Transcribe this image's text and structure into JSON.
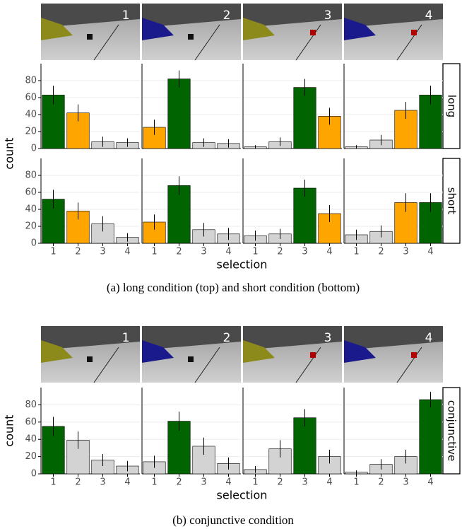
{
  "chart_data": [
    {
      "type": "bar",
      "row_label": "long",
      "y_label": "count",
      "panel_titles": [
        "1",
        "2",
        "3",
        "4"
      ],
      "ylim": [
        0,
        100
      ],
      "yticks": [
        0,
        20,
        40,
        60,
        80
      ],
      "grid": true,
      "panels": [
        {
          "values": [
            63,
            42,
            8,
            7
          ],
          "errors": [
            11,
            10,
            6,
            5
          ],
          "colors": [
            "#006400",
            "#ffa500",
            "#d3d3d3",
            "#d3d3d3"
          ]
        },
        {
          "values": [
            25,
            82,
            7,
            6
          ],
          "errors": [
            9,
            10,
            5,
            5
          ],
          "colors": [
            "#ffa500",
            "#006400",
            "#d3d3d3",
            "#d3d3d3"
          ]
        },
        {
          "values": [
            2,
            8,
            72,
            38
          ],
          "errors": [
            2,
            5,
            10,
            10
          ],
          "colors": [
            "#d3d3d3",
            "#d3d3d3",
            "#006400",
            "#ffa500"
          ]
        },
        {
          "values": [
            2,
            10,
            45,
            63
          ],
          "errors": [
            2,
            6,
            10,
            11
          ],
          "colors": [
            "#d3d3d3",
            "#d3d3d3",
            "#ffa500",
            "#006400"
          ]
        }
      ]
    },
    {
      "type": "bar",
      "row_label": "short",
      "x_label": "selection",
      "categories": [
        "1",
        "2",
        "3",
        "4"
      ],
      "ylim": [
        0,
        100
      ],
      "yticks": [
        0,
        20,
        40,
        60,
        80
      ],
      "grid": true,
      "panels": [
        {
          "values": [
            52,
            38,
            23,
            7
          ],
          "errors": [
            11,
            10,
            9,
            5
          ],
          "colors": [
            "#006400",
            "#ffa500",
            "#d3d3d3",
            "#d3d3d3"
          ]
        },
        {
          "values": [
            25,
            68,
            16,
            11
          ],
          "errors": [
            9,
            11,
            8,
            7
          ],
          "colors": [
            "#ffa500",
            "#006400",
            "#d3d3d3",
            "#d3d3d3"
          ]
        },
        {
          "values": [
            9,
            11,
            65,
            35
          ],
          "errors": [
            6,
            6,
            10,
            10
          ],
          "colors": [
            "#d3d3d3",
            "#d3d3d3",
            "#006400",
            "#ffa500"
          ]
        },
        {
          "values": [
            10,
            14,
            48,
            48
          ],
          "errors": [
            6,
            7,
            11,
            11
          ],
          "colors": [
            "#d3d3d3",
            "#d3d3d3",
            "#ffa500",
            "#006400"
          ]
        }
      ]
    },
    {
      "type": "bar",
      "row_label": "conjunctive",
      "y_label": "count",
      "x_label": "selection",
      "panel_titles": [
        "1",
        "2",
        "3",
        "4"
      ],
      "categories": [
        "1",
        "2",
        "3",
        "4"
      ],
      "ylim": [
        0,
        100
      ],
      "yticks": [
        0,
        20,
        40,
        60,
        80
      ],
      "grid": true,
      "panels": [
        {
          "values": [
            55,
            39,
            16,
            9
          ],
          "errors": [
            11,
            10,
            7,
            6
          ],
          "colors": [
            "#006400",
            "#d3d3d3",
            "#d3d3d3",
            "#d3d3d3"
          ]
        },
        {
          "values": [
            14,
            61,
            32,
            12
          ],
          "errors": [
            7,
            11,
            10,
            7
          ],
          "colors": [
            "#d3d3d3",
            "#006400",
            "#d3d3d3",
            "#d3d3d3"
          ]
        },
        {
          "values": [
            5,
            29,
            65,
            20
          ],
          "errors": [
            4,
            10,
            10,
            8
          ],
          "colors": [
            "#d3d3d3",
            "#d3d3d3",
            "#006400",
            "#d3d3d3"
          ]
        },
        {
          "values": [
            2,
            11,
            20,
            86
          ],
          "errors": [
            2,
            6,
            8,
            9
          ],
          "colors": [
            "#d3d3d3",
            "#d3d3d3",
            "#d3d3d3",
            "#006400"
          ]
        }
      ]
    }
  ],
  "captions": [
    "(a) long condition (top) and short condition (bottom)",
    "(b) conjunctive condition"
  ]
}
